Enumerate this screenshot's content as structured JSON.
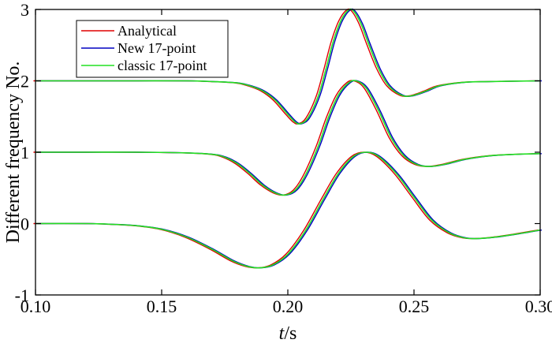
{
  "chart_data": {
    "type": "line",
    "xlabel_italic": "t",
    "xlabel_unit": "/s",
    "ylabel": "Different frequency No.",
    "xlim": [
      0.1,
      0.3
    ],
    "ylim": [
      -1,
      3
    ],
    "xticks": [
      "0.10",
      "0.15",
      "0.20",
      "0.25",
      "0.30"
    ],
    "xtick_values": [
      0.1,
      0.15,
      0.2,
      0.25,
      0.3
    ],
    "yticks": [
      "-1",
      "0",
      "1",
      "2",
      "3"
    ],
    "ytick_values": [
      -1,
      0,
      1,
      2,
      3
    ],
    "grid": false,
    "legend_position": "top-left",
    "legend": [
      {
        "name": "Analytical",
        "color": "#e00000"
      },
      {
        "name": "New 17-point",
        "color": "#0000c0"
      },
      {
        "name": "classic 17-point",
        "color": "#22e022"
      }
    ],
    "curves": [
      {
        "offset": 2,
        "points": [
          [
            0.1,
            2.0
          ],
          [
            0.12,
            2.0
          ],
          [
            0.14,
            2.0
          ],
          [
            0.16,
            2.0
          ],
          [
            0.17,
            1.99
          ],
          [
            0.18,
            1.97
          ],
          [
            0.185,
            1.93
          ],
          [
            0.19,
            1.86
          ],
          [
            0.195,
            1.73
          ],
          [
            0.2,
            1.53
          ],
          [
            0.203,
            1.42
          ],
          [
            0.205,
            1.4
          ],
          [
            0.208,
            1.48
          ],
          [
            0.212,
            1.78
          ],
          [
            0.215,
            2.15
          ],
          [
            0.218,
            2.55
          ],
          [
            0.221,
            2.84
          ],
          [
            0.224,
            2.99
          ],
          [
            0.226,
            2.98
          ],
          [
            0.229,
            2.8
          ],
          [
            0.232,
            2.52
          ],
          [
            0.236,
            2.17
          ],
          [
            0.24,
            1.93
          ],
          [
            0.245,
            1.8
          ],
          [
            0.249,
            1.79
          ],
          [
            0.255,
            1.86
          ],
          [
            0.26,
            1.93
          ],
          [
            0.27,
            1.98
          ],
          [
            0.28,
            1.99
          ],
          [
            0.3,
            2.0
          ]
        ]
      },
      {
        "offset": 1,
        "points": [
          [
            0.1,
            1.0
          ],
          [
            0.12,
            1.0
          ],
          [
            0.14,
            1.0
          ],
          [
            0.16,
            0.99
          ],
          [
            0.17,
            0.97
          ],
          [
            0.175,
            0.93
          ],
          [
            0.18,
            0.84
          ],
          [
            0.185,
            0.7
          ],
          [
            0.19,
            0.54
          ],
          [
            0.195,
            0.43
          ],
          [
            0.199,
            0.4
          ],
          [
            0.203,
            0.47
          ],
          [
            0.207,
            0.68
          ],
          [
            0.212,
            1.08
          ],
          [
            0.216,
            1.48
          ],
          [
            0.22,
            1.8
          ],
          [
            0.224,
            1.97
          ],
          [
            0.227,
            2.0
          ],
          [
            0.231,
            1.9
          ],
          [
            0.236,
            1.58
          ],
          [
            0.241,
            1.2
          ],
          [
            0.246,
            0.95
          ],
          [
            0.251,
            0.83
          ],
          [
            0.256,
            0.8
          ],
          [
            0.262,
            0.83
          ],
          [
            0.27,
            0.9
          ],
          [
            0.28,
            0.95
          ],
          [
            0.29,
            0.97
          ],
          [
            0.3,
            0.98
          ]
        ]
      },
      {
        "offset": 0,
        "points": [
          [
            0.1,
            0.0
          ],
          [
            0.12,
            0.0
          ],
          [
            0.13,
            -0.01
          ],
          [
            0.14,
            -0.03
          ],
          [
            0.15,
            -0.08
          ],
          [
            0.16,
            -0.19
          ],
          [
            0.17,
            -0.36
          ],
          [
            0.178,
            -0.52
          ],
          [
            0.184,
            -0.6
          ],
          [
            0.189,
            -0.62
          ],
          [
            0.194,
            -0.58
          ],
          [
            0.2,
            -0.43
          ],
          [
            0.207,
            -0.1
          ],
          [
            0.214,
            0.34
          ],
          [
            0.22,
            0.7
          ],
          [
            0.226,
            0.94
          ],
          [
            0.231,
            1.0
          ],
          [
            0.236,
            0.94
          ],
          [
            0.243,
            0.7
          ],
          [
            0.25,
            0.37
          ],
          [
            0.257,
            0.05
          ],
          [
            0.264,
            -0.13
          ],
          [
            0.27,
            -0.2
          ],
          [
            0.275,
            -0.21
          ],
          [
            0.282,
            -0.19
          ],
          [
            0.29,
            -0.15
          ],
          [
            0.3,
            -0.09
          ]
        ]
      }
    ]
  }
}
